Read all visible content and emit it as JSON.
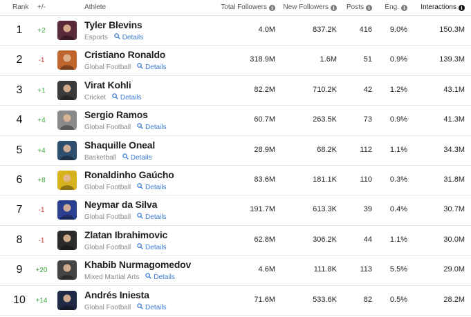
{
  "header": {
    "rank": "Rank",
    "change": "+/-",
    "athlete": "Athlete",
    "total_followers": "Total Followers",
    "new_followers": "New Followers",
    "posts": "Posts",
    "eng": "Eng.",
    "interactions": "Interactions"
  },
  "details_label": "Details",
  "rows": [
    {
      "rank": "1",
      "change": "+2",
      "name": "Tyler Blevins",
      "category": "Esports",
      "total": "4.0M",
      "new": "837.2K",
      "posts": "416",
      "eng": "9.0%",
      "interactions": "150.3M",
      "avatar_color": "#5a2a3a"
    },
    {
      "rank": "2",
      "change": "-1",
      "name": "Cristiano Ronaldo",
      "category": "Global Football",
      "total": "318.9M",
      "new": "1.6M",
      "posts": "51",
      "eng": "0.9%",
      "interactions": "139.3M",
      "avatar_color": "#c0652b"
    },
    {
      "rank": "3",
      "change": "+1",
      "name": "Virat Kohli",
      "category": "Cricket",
      "total": "82.2M",
      "new": "710.2K",
      "posts": "42",
      "eng": "1.2%",
      "interactions": "43.1M",
      "avatar_color": "#3a3a3a"
    },
    {
      "rank": "4",
      "change": "+4",
      "name": "Sergio Ramos",
      "category": "Global Football",
      "total": "60.7M",
      "new": "263.5K",
      "posts": "73",
      "eng": "0.9%",
      "interactions": "41.3M",
      "avatar_color": "#8a8a8a"
    },
    {
      "rank": "5",
      "change": "+4",
      "name": "Shaquille Oneal",
      "category": "Basketball",
      "total": "28.9M",
      "new": "68.2K",
      "posts": "112",
      "eng": "1.1%",
      "interactions": "34.3M",
      "avatar_color": "#2f4f6f"
    },
    {
      "rank": "6",
      "change": "+8",
      "name": "Ronaldinho Gaúcho",
      "category": "Global Football",
      "total": "83.6M",
      "new": "181.1K",
      "posts": "110",
      "eng": "0.3%",
      "interactions": "31.8M",
      "avatar_color": "#d7b21e"
    },
    {
      "rank": "7",
      "change": "-1",
      "name": "Neymar da Silva",
      "category": "Global Football",
      "total": "191.7M",
      "new": "613.3K",
      "posts": "39",
      "eng": "0.4%",
      "interactions": "30.7M",
      "avatar_color": "#2a3f8f"
    },
    {
      "rank": "8",
      "change": "-1",
      "name": "Zlatan Ibrahimovic",
      "category": "Global Football",
      "total": "62.8M",
      "new": "306.2K",
      "posts": "44",
      "eng": "1.1%",
      "interactions": "30.0M",
      "avatar_color": "#2b2b2b"
    },
    {
      "rank": "9",
      "change": "+20",
      "name": "Khabib Nurmagomedov",
      "category": "Mixed Martial Arts",
      "total": "4.6M",
      "new": "111.8K",
      "posts": "113",
      "eng": "5.5%",
      "interactions": "29.0M",
      "avatar_color": "#444444"
    },
    {
      "rank": "10",
      "change": "+14",
      "name": "Andrés Iniesta",
      "category": "Global Football",
      "total": "71.6M",
      "new": "533.6K",
      "posts": "82",
      "eng": "0.5%",
      "interactions": "28.2M",
      "avatar_color": "#1f2a44"
    }
  ]
}
